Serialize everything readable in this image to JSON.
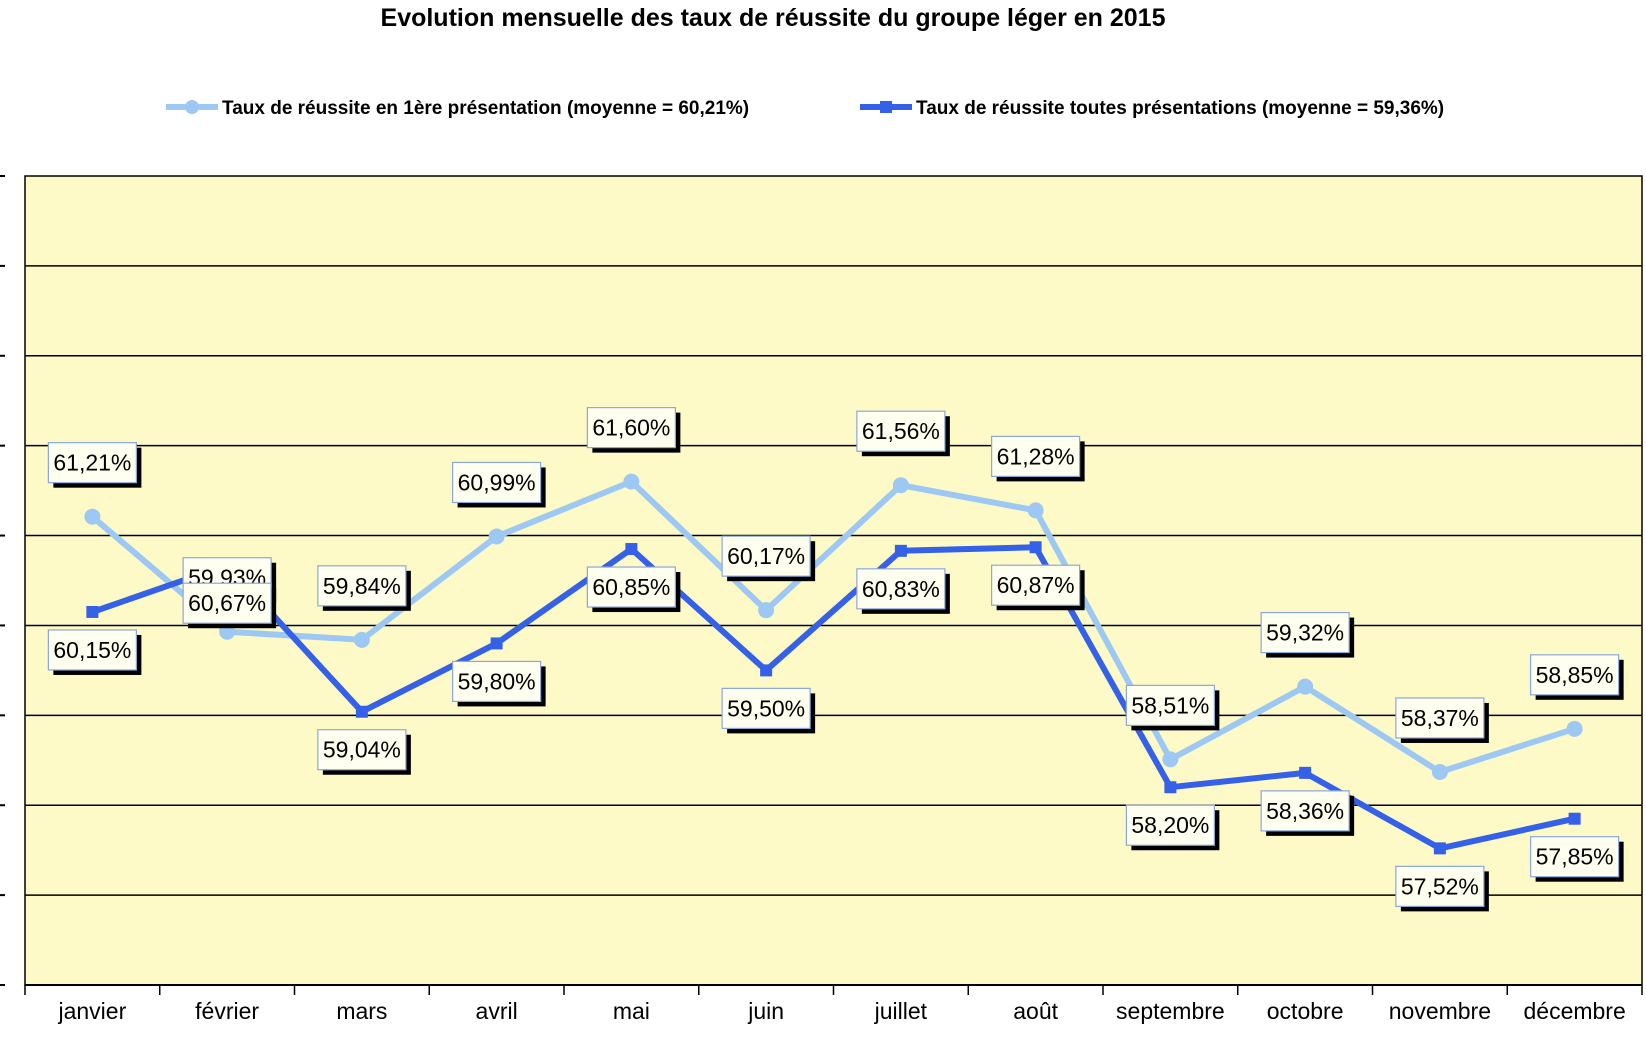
{
  "chart_data": {
    "type": "line",
    "title": "Evolution mensuelle des taux de réussite du groupe léger en 2015",
    "categories": [
      "janvier",
      "février",
      "mars",
      "avril",
      "mai",
      "juin",
      "juillet",
      "août",
      "septembre",
      "octobre",
      "novembre",
      "décembre"
    ],
    "ylim": [
      56,
      65
    ],
    "grid": true,
    "legend_position": "top",
    "plot_background": "#FDFAC8",
    "series": [
      {
        "name": "Taux de réussite en 1ère présentation (moyenne = 60,21%)",
        "color": "#9DC8F3",
        "marker": "circle",
        "values": [
          61.21,
          59.93,
          59.84,
          60.99,
          61.6,
          60.17,
          61.56,
          61.28,
          58.51,
          59.32,
          58.37,
          58.85
        ],
        "labels": [
          "61,21%",
          "59,93%",
          "59,84%",
          "60,99%",
          "61,60%",
          "60,17%",
          "61,56%",
          "61,28%",
          "58,51%",
          "59,32%",
          "58,37%",
          "58,85%"
        ]
      },
      {
        "name": "Taux de réussite toutes présentations (moyenne = 59,36%)",
        "color": "#3560E8",
        "marker": "square",
        "values": [
          60.15,
          60.67,
          59.04,
          59.8,
          60.85,
          59.5,
          60.83,
          60.87,
          58.2,
          58.36,
          57.52,
          57.85
        ],
        "labels": [
          "60,15%",
          "60,67%",
          "59,04%",
          "59,80%",
          "60,85%",
          "59,50%",
          "60,83%",
          "60,87%",
          "58,20%",
          "58,36%",
          "57,52%",
          "57,85%"
        ]
      }
    ]
  }
}
